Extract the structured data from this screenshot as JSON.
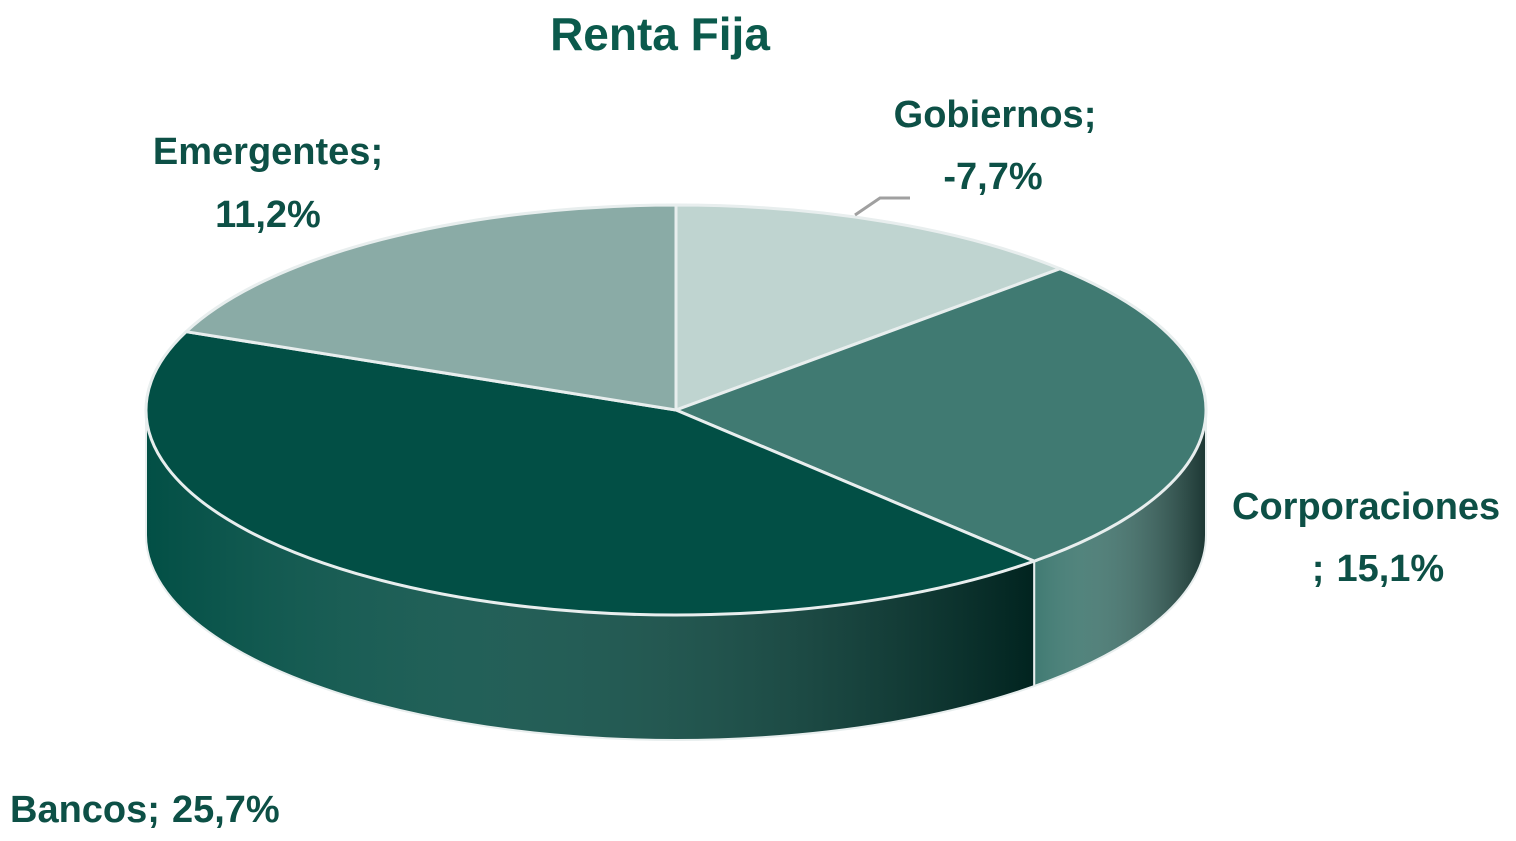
{
  "chart_data": {
    "type": "pie",
    "title": "Renta Fija",
    "categories": [
      "Gobiernos",
      "Corporaciones",
      "Bancos",
      "Emergentes"
    ],
    "values": [
      -7.7,
      15.1,
      25.7,
      11.2
    ],
    "value_labels": [
      "-7,7%",
      "15,1%",
      "25,7%",
      "11,2%"
    ],
    "separator": ";",
    "colors": [
      "#bfd4d0",
      "#407a72",
      "#024f45",
      "#8aaba6"
    ]
  }
}
